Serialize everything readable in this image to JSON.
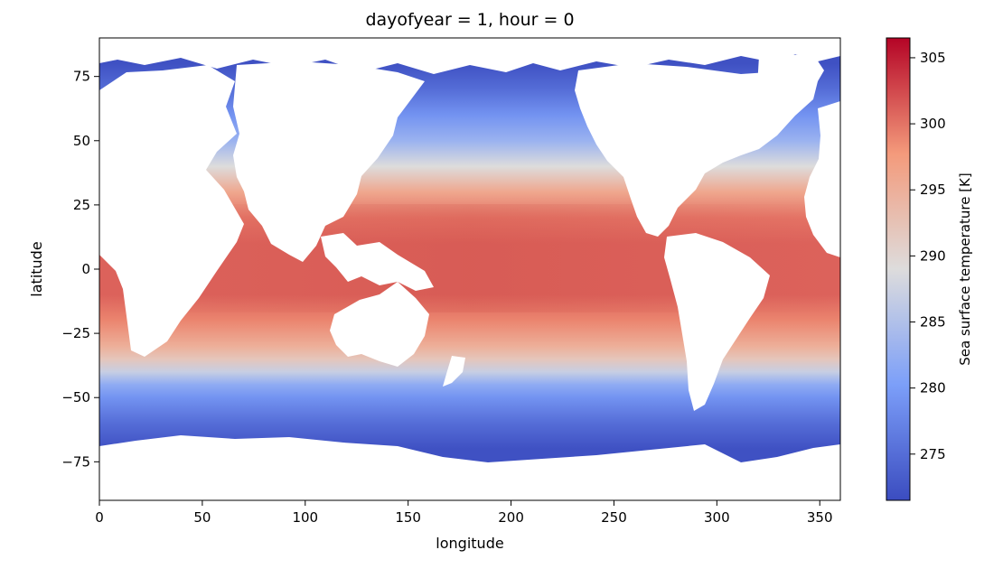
{
  "chart_data": {
    "type": "heatmap",
    "title": "dayofyear = 1, hour = 0",
    "xlabel": "longitude",
    "ylabel": "latitude",
    "xlim": [
      0,
      360
    ],
    "ylim": [
      -90,
      90
    ],
    "xticks": [
      0,
      50,
      100,
      150,
      200,
      250,
      300,
      350
    ],
    "xtick_labels": [
      "0",
      "50",
      "100",
      "150",
      "200",
      "250",
      "300",
      "350"
    ],
    "yticks": [
      75,
      50,
      25,
      0,
      -25,
      -50,
      -75
    ],
    "ytick_labels": [
      "75",
      "50",
      "25",
      "0",
      "−25",
      "−50",
      "−75"
    ],
    "colormap": "coolwarm",
    "missing_value_color": "#ffffff",
    "colorbar": {
      "label": "Sea surface temperature [K]",
      "range": [
        271.5,
        306.5
      ],
      "ticks": [
        275,
        280,
        285,
        290,
        295,
        300,
        305
      ],
      "tick_labels": [
        "275",
        "280",
        "285",
        "290",
        "295",
        "300",
        "305"
      ]
    },
    "zonal_profile": {
      "latitudes": [
        80,
        70,
        60,
        50,
        40,
        30,
        20,
        10,
        0,
        -10,
        -20,
        -30,
        -35,
        -40,
        -45,
        -50,
        -60,
        -70
      ],
      "values": [
        272,
        275,
        279,
        283,
        289,
        296,
        300,
        301,
        301,
        301,
        299,
        295,
        292,
        287,
        282,
        279,
        275,
        272
      ]
    },
    "grid": false,
    "legend": "colorbar-right"
  }
}
